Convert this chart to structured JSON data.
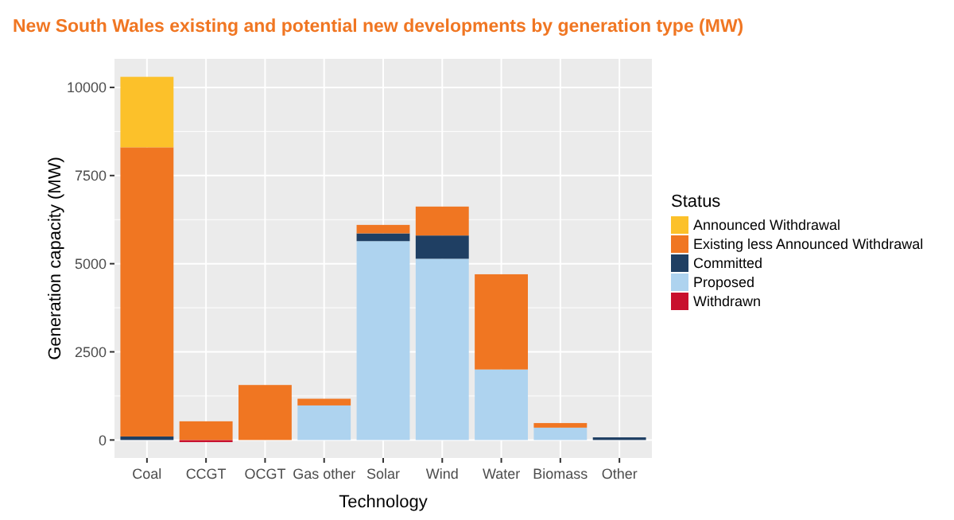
{
  "chart_data": {
    "type": "bar",
    "title": "New South Wales existing and potential new developments by generation type (MW)",
    "xlabel": "Technology",
    "ylabel": "Generation capacity (MW)",
    "legend_title": "Status",
    "categories": [
      "Coal",
      "CCGT",
      "OCGT",
      "Gas other",
      "Solar",
      "Wind",
      "Water",
      "Biomass",
      "Other"
    ],
    "stacked": true,
    "grid": true,
    "legend": "right",
    "ylim": [
      -510,
      10810
    ],
    "yticks": [
      0,
      2500,
      5000,
      7500,
      10000
    ],
    "series": [
      {
        "name": "Withdrawn",
        "color": "#c8102e",
        "values": [
          0,
          -60,
          0,
          0,
          0,
          0,
          0,
          0,
          0
        ]
      },
      {
        "name": "Proposed",
        "color": "#aed3ef",
        "values": [
          0,
          0,
          0,
          980,
          5640,
          5140,
          2000,
          350,
          0
        ]
      },
      {
        "name": "Committed",
        "color": "#1f3f63",
        "values": [
          100,
          0,
          0,
          0,
          220,
          660,
          0,
          0,
          75
        ]
      },
      {
        "name": "Existing less Announced Withdrawal",
        "color": "#f07622",
        "values": [
          8200,
          530,
          1560,
          190,
          240,
          820,
          2700,
          130,
          0
        ]
      },
      {
        "name": "Announced Withdrawal",
        "color": "#fcc12a",
        "values": [
          2000,
          0,
          0,
          0,
          0,
          0,
          0,
          0,
          0
        ]
      }
    ]
  }
}
